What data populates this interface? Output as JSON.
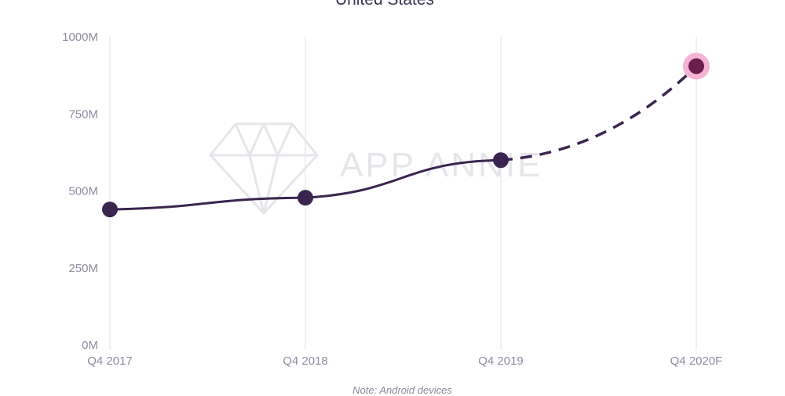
{
  "chart_data": {
    "type": "line",
    "title": "United States",
    "note": "Note: Android devices",
    "watermark": "APP ANNIE",
    "categories": [
      "Q4 2017",
      "Q4 2018",
      "Q4 2019",
      "Q4 2020F"
    ],
    "series": [
      {
        "values": [
          440,
          478,
          600,
          905
        ],
        "style": "solid until Q4 2019, dashed forecast to Q4 2020F",
        "forecast_from_index": 2
      }
    ],
    "ylim": [
      0,
      1000
    ],
    "y_ticks": [
      0,
      250,
      500,
      750,
      1000
    ],
    "y_tick_labels": [
      "0M",
      "250M",
      "500M",
      "750M",
      "1000M"
    ],
    "grid": "vertical lines at categories",
    "legend": "none",
    "colors": {
      "line": "#3a2550",
      "marker": "#3a2550",
      "highlight_marker": "#6b1d4e",
      "highlight_ring": "#f4b2d4",
      "grid": "#e7e6ec",
      "tick_text": "#8e8ba0",
      "watermark": "#e6e5ea"
    }
  }
}
